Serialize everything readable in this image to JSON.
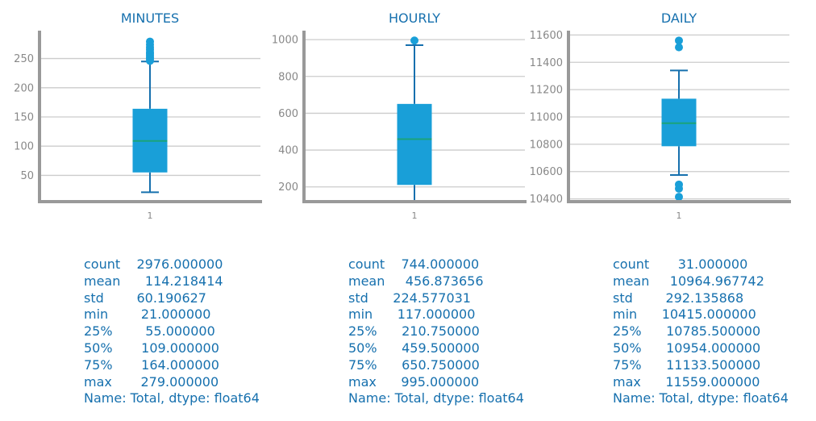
{
  "chart_data": [
    {
      "type": "box",
      "title": "MINUTES",
      "xtick_labels": [
        "1"
      ],
      "ylim": [
        5,
        295
      ],
      "yticks": [
        50,
        100,
        150,
        200,
        250
      ],
      "grid": true,
      "box": {
        "whisker_low": 21,
        "q1": 55,
        "median": 109,
        "q3": 164,
        "whisker_high": 245
      },
      "outliers": [
        246,
        249,
        252,
        255,
        258,
        261,
        265,
        269,
        274,
        279
      ]
    },
    {
      "type": "box",
      "title": "HOURLY",
      "xtick_labels": [
        "1"
      ],
      "ylim": [
        120,
        1040
      ],
      "yticks": [
        200,
        400,
        600,
        800,
        1000
      ],
      "grid": true,
      "box": {
        "whisker_low": 117,
        "q1": 210.75,
        "median": 459.5,
        "q3": 650.75,
        "whisker_high": 970
      },
      "outliers": [
        995
      ]
    },
    {
      "type": "box",
      "title": "DAILY",
      "xtick_labels": [
        "1"
      ],
      "ylim": [
        10380,
        11620
      ],
      "yticks": [
        10400,
        10600,
        10800,
        11000,
        11200,
        11400,
        11600
      ],
      "grid": true,
      "box": {
        "whisker_low": 10575,
        "q1": 10785.5,
        "median": 10954,
        "q3": 11133.5,
        "whisker_high": 11340
      },
      "outliers": [
        10415,
        10475,
        10505,
        11510,
        11559
      ]
    }
  ],
  "stats": [
    {
      "lines": [
        "count    2976.000000",
        "mean      114.218414",
        "std        60.190627",
        "min        21.000000",
        "25%        55.000000",
        "50%       109.000000",
        "75%       164.000000",
        "max       279.000000",
        "Name: Total, dtype: float64"
      ]
    },
    {
      "lines": [
        "count    744.000000",
        "mean     456.873656",
        "std      224.577031",
        "min      117.000000",
        "25%      210.750000",
        "50%      459.500000",
        "75%      650.750000",
        "max      995.000000",
        "Name: Total, dtype: float64"
      ]
    },
    {
      "lines": [
        "count       31.000000",
        "mean     10964.967742",
        "std        292.135868",
        "min      10415.000000",
        "25%      10785.500000",
        "50%      10954.000000",
        "75%      11133.500000",
        "max      11559.000000",
        "Name: Total, dtype: float64"
      ]
    }
  ],
  "colors": {
    "box_fill": "#199fd8",
    "whisker": "#1670ae",
    "median": "#1aa37a",
    "outlier": "#199fd8",
    "title": "#1670ae",
    "spine": "#999999",
    "grid": "#cccccc",
    "tick_label": "#888888"
  }
}
